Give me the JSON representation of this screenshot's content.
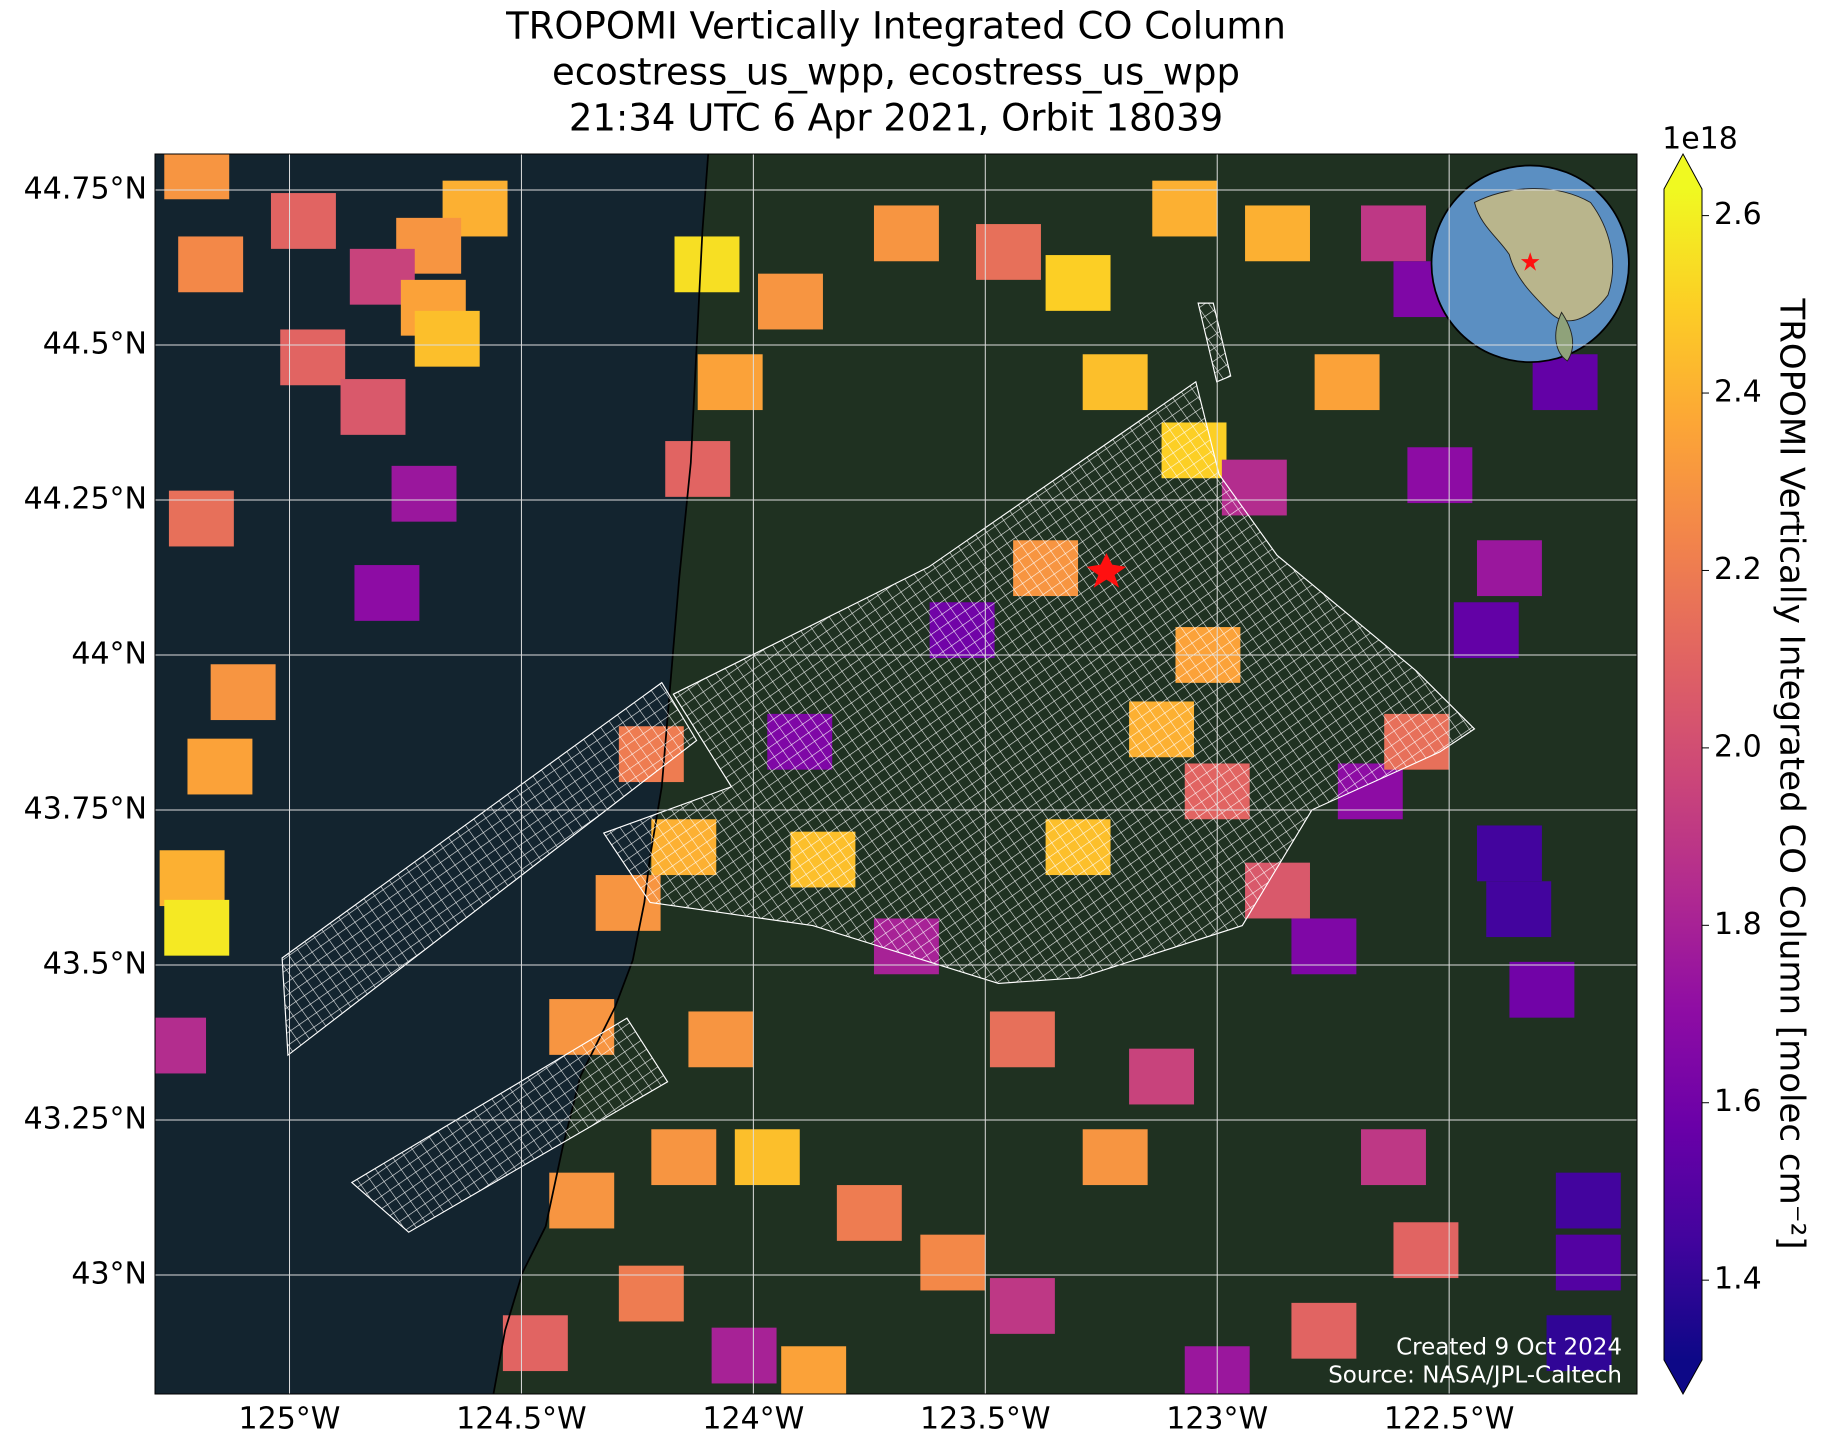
{
  "chart_data": {
    "type": "map",
    "title": [
      "TROPOMI Vertically Integrated CO Column",
      "ecostress_us_wpp, ecostress_us_wpp",
      "21:34 UTC 6 Apr 2021, Orbit 18039"
    ],
    "xlim": [
      -125.29,
      -122.095
    ],
    "ylim": [
      42.808,
      44.808
    ],
    "xticks": [
      {
        "value": -125,
        "label": "125°W"
      },
      {
        "value": -124.5,
        "label": "124.5°W"
      },
      {
        "value": -124,
        "label": "124°W"
      },
      {
        "value": -123.5,
        "label": "123.5°W"
      },
      {
        "value": -123,
        "label": "123°W"
      },
      {
        "value": -122.5,
        "label": "122.5°W"
      }
    ],
    "yticks": [
      {
        "value": 43,
        "label": "43°N"
      },
      {
        "value": 43.25,
        "label": "43.25°N"
      },
      {
        "value": 43.5,
        "label": "43.5°N"
      },
      {
        "value": 43.75,
        "label": "43.75°N"
      },
      {
        "value": 44,
        "label": "44°N"
      },
      {
        "value": 44.25,
        "label": "44.25°N"
      },
      {
        "value": 44.5,
        "label": "44.5°N"
      },
      {
        "value": 44.75,
        "label": "44.75°N"
      }
    ],
    "grid": true,
    "colormap": [
      "#0d0887",
      "#41049d",
      "#6a00a8",
      "#8f0da4",
      "#b12a90",
      "#cc4778",
      "#e16462",
      "#f2844b",
      "#fca636",
      "#fcce25",
      "#f0f921"
    ],
    "clim": [
      1.31,
      2.63
    ],
    "colorbar_ticks": [
      1.4,
      1.6,
      1.8,
      {
        "value": 2,
        "label": "2.0"
      },
      2.2,
      2.4,
      2.6
    ],
    "colorbar_offset": "1e18",
    "colorbar_label": "TROPOMI Vertically Integrated CO Column [molec cm⁻²]",
    "cells": [
      {
        "lon": -125.2,
        "lat": 44.78,
        "value": 2.3
      },
      {
        "lon": -124.97,
        "lat": 44.7,
        "value": 2.1
      },
      {
        "lon": -124.6,
        "lat": 44.72,
        "value": 2.4
      },
      {
        "lon": -124.7,
        "lat": 44.66,
        "value": 2.3
      },
      {
        "lon": -124.8,
        "lat": 44.61,
        "value": 1.95
      },
      {
        "lon": -124.69,
        "lat": 44.56,
        "value": 2.35
      },
      {
        "lon": -124.66,
        "lat": 44.51,
        "value": 2.45
      },
      {
        "lon": -125.17,
        "lat": 44.63,
        "value": 2.25
      },
      {
        "lon": -124.95,
        "lat": 44.48,
        "value": 2.1
      },
      {
        "lon": -124.82,
        "lat": 44.4,
        "value": 2.05
      },
      {
        "lon": -124.71,
        "lat": 44.26,
        "value": 1.75
      },
      {
        "lon": -124.79,
        "lat": 44.1,
        "value": 1.7
      },
      {
        "lon": -125.19,
        "lat": 44.22,
        "value": 2.15
      },
      {
        "lon": -125.1,
        "lat": 43.94,
        "value": 2.3
      },
      {
        "lon": -125.15,
        "lat": 43.82,
        "value": 2.35
      },
      {
        "lon": -125.21,
        "lat": 43.64,
        "value": 2.4
      },
      {
        "lon": -125.2,
        "lat": 43.56,
        "value": 2.58
      },
      {
        "lon": -125.25,
        "lat": 43.37,
        "value": 1.85
      },
      {
        "lon": -124.1,
        "lat": 44.63,
        "value": 2.55
      },
      {
        "lon": -124.05,
        "lat": 44.44,
        "value": 2.35
      },
      {
        "lon": -124.12,
        "lat": 44.3,
        "value": 2.1
      },
      {
        "lon": -123.92,
        "lat": 44.57,
        "value": 2.3
      },
      {
        "lon": -123.67,
        "lat": 44.68,
        "value": 2.3
      },
      {
        "lon": -123.45,
        "lat": 44.65,
        "value": 2.15
      },
      {
        "lon": -123.3,
        "lat": 44.6,
        "value": 2.5
      },
      {
        "lon": -123.22,
        "lat": 44.44,
        "value": 2.45
      },
      {
        "lon": -123.07,
        "lat": 44.72,
        "value": 2.4
      },
      {
        "lon": -122.87,
        "lat": 44.68,
        "value": 2.4
      },
      {
        "lon": -122.72,
        "lat": 44.44,
        "value": 2.35
      },
      {
        "lon": -122.62,
        "lat": 44.68,
        "value": 1.9
      },
      {
        "lon": -122.55,
        "lat": 44.59,
        "value": 1.65
      },
      {
        "lon": -122.25,
        "lat": 44.44,
        "value": 1.55
      },
      {
        "lon": -122.37,
        "lat": 44.14,
        "value": 1.75
      },
      {
        "lon": -122.42,
        "lat": 44.04,
        "value": 1.55
      },
      {
        "lon": -123.05,
        "lat": 44.33,
        "value": 2.5
      },
      {
        "lon": -122.92,
        "lat": 44.27,
        "value": 1.85
      },
      {
        "lon": -122.52,
        "lat": 44.29,
        "value": 1.7
      },
      {
        "lon": -123.37,
        "lat": 44.14,
        "value": 2.3
      },
      {
        "lon": -123.55,
        "lat": 44.04,
        "value": 1.6
      },
      {
        "lon": -123.9,
        "lat": 43.86,
        "value": 1.65
      },
      {
        "lon": -123.02,
        "lat": 44.0,
        "value": 2.35
      },
      {
        "lon": -123.12,
        "lat": 43.88,
        "value": 2.4
      },
      {
        "lon": -122.67,
        "lat": 43.78,
        "value": 1.7
      },
      {
        "lon": -123.3,
        "lat": 43.69,
        "value": 2.45
      },
      {
        "lon": -123.67,
        "lat": 43.53,
        "value": 1.8
      },
      {
        "lon": -122.37,
        "lat": 43.68,
        "value": 1.45
      },
      {
        "lon": -122.35,
        "lat": 43.59,
        "value": 1.45
      },
      {
        "lon": -122.3,
        "lat": 43.46,
        "value": 1.6
      },
      {
        "lon": -122.2,
        "lat": 43.12,
        "value": 1.45
      },
      {
        "lon": -122.2,
        "lat": 43.02,
        "value": 1.5
      },
      {
        "lon": -122.22,
        "lat": 42.89,
        "value": 1.4
      },
      {
        "lon": -122.77,
        "lat": 43.53,
        "value": 1.65
      },
      {
        "lon": -124.15,
        "lat": 43.19,
        "value": 2.3
      },
      {
        "lon": -123.97,
        "lat": 43.19,
        "value": 2.45
      },
      {
        "lon": -124.15,
        "lat": 43.69,
        "value": 2.4
      },
      {
        "lon": -124.27,
        "lat": 43.6,
        "value": 2.3
      },
      {
        "lon": -123.85,
        "lat": 43.67,
        "value": 2.45
      },
      {
        "lon": -124.37,
        "lat": 43.4,
        "value": 2.3
      },
      {
        "lon": -124.47,
        "lat": 42.89,
        "value": 2.1
      },
      {
        "lon": -124.02,
        "lat": 42.87,
        "value": 1.8
      },
      {
        "lon": -123.87,
        "lat": 42.84,
        "value": 2.35
      },
      {
        "lon": -123.0,
        "lat": 42.84,
        "value": 1.75
      },
      {
        "lon": -123.12,
        "lat": 43.32,
        "value": 1.95
      },
      {
        "lon": -123.0,
        "lat": 43.78,
        "value": 2.1
      },
      {
        "lon": -122.57,
        "lat": 43.86,
        "value": 2.15
      },
      {
        "lon": -122.87,
        "lat": 43.62,
        "value": 2.05
      },
      {
        "lon": -124.22,
        "lat": 43.84,
        "value": 2.2
      },
      {
        "lon": -124.07,
        "lat": 43.38,
        "value": 2.3
      },
      {
        "lon": -123.75,
        "lat": 43.1,
        "value": 2.2
      },
      {
        "lon": -123.42,
        "lat": 43.38,
        "value": 2.15
      },
      {
        "lon": -123.22,
        "lat": 43.19,
        "value": 2.3
      },
      {
        "lon": -122.55,
        "lat": 43.04,
        "value": 2.1
      },
      {
        "lon": -122.62,
        "lat": 43.19,
        "value": 1.9
      },
      {
        "lon": -122.77,
        "lat": 42.91,
        "value": 2.1
      },
      {
        "lon": -123.42,
        "lat": 42.95,
        "value": 1.9
      },
      {
        "lon": -124.22,
        "lat": 42.97,
        "value": 2.2
      },
      {
        "lon": -124.37,
        "lat": 43.12,
        "value": 2.3
      },
      {
        "lon": -123.57,
        "lat": 43.02,
        "value": 2.25
      }
    ],
    "annotations": [
      "Created 9 Oct 2024",
      "Source: NASA/JPL-Caltech"
    ]
  }
}
